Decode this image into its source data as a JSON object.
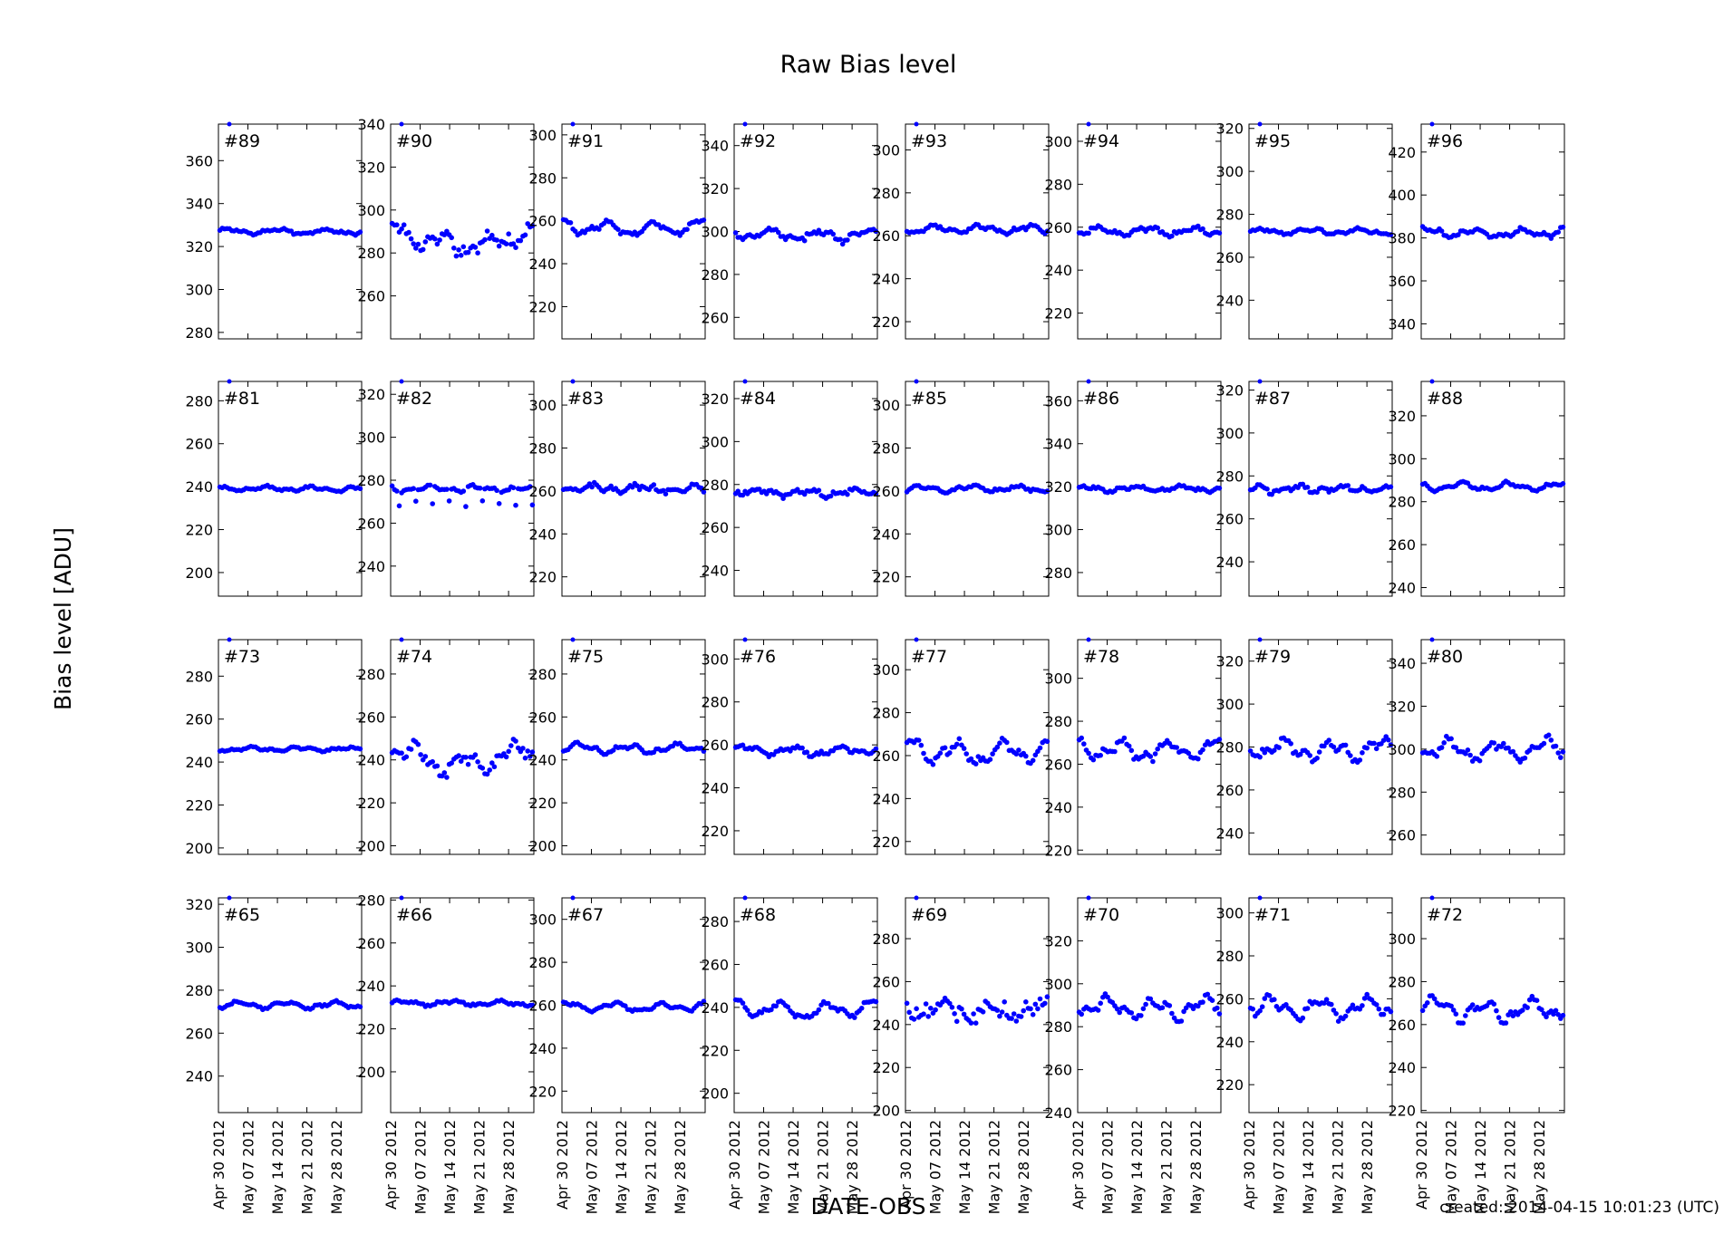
{
  "figure": {
    "title": "Raw Bias level",
    "ylabel": "Bias level [ADU]",
    "xlabel": "DATE-OBS",
    "created": "created: 2014-04-15 10:01:23 (UTC)"
  },
  "colors": {
    "marker": "#0000ff",
    "axes": "#000000",
    "background": "#ffffff"
  },
  "x_ticks": [
    "Apr 30 2012",
    "May 07 2012",
    "May 14 2012",
    "May 21 2012",
    "May 28 2012"
  ],
  "x_range": [
    "2012-04-30",
    "2012-06-03"
  ],
  "panels": [
    {
      "label": "#89",
      "ylim": [
        277,
        377
      ],
      "yticks": [
        280,
        300,
        320,
        340,
        360
      ],
      "level": 327,
      "noise": 0.5,
      "wave": 1.0,
      "dip": 0,
      "scatter": 0.6
    },
    {
      "label": "#90",
      "ylim": [
        240,
        340
      ],
      "yticks": [
        260,
        280,
        300,
        320,
        340
      ],
      "level": 291,
      "noise": 2.0,
      "wave": 3.0,
      "dip": 8,
      "scatter": 2.5
    },
    {
      "label": "#91",
      "ylim": [
        205,
        305
      ],
      "yticks": [
        220,
        240,
        260,
        280,
        300
      ],
      "level": 258,
      "noise": 1.0,
      "wave": 2.5,
      "dip": 2,
      "scatter": 1.0
    },
    {
      "label": "#92",
      "ylim": [
        250,
        350
      ],
      "yticks": [
        260,
        280,
        300,
        320,
        340
      ],
      "level": 299,
      "noise": 1.0,
      "wave": 2.0,
      "dip": 1,
      "scatter": 1.2
    },
    {
      "label": "#93",
      "ylim": [
        212,
        312
      ],
      "yticks": [
        220,
        240,
        260,
        280,
        300
      ],
      "level": 263,
      "noise": 0.8,
      "wave": 1.5,
      "dip": 0,
      "scatter": 0.8
    },
    {
      "label": "#94",
      "ylim": [
        208,
        308
      ],
      "yticks": [
        220,
        240,
        260,
        280,
        300
      ],
      "level": 258,
      "noise": 0.8,
      "wave": 1.5,
      "dip": 0,
      "scatter": 0.8
    },
    {
      "label": "#95",
      "ylim": [
        222,
        322
      ],
      "yticks": [
        240,
        260,
        280,
        300,
        320
      ],
      "level": 272,
      "noise": 0.6,
      "wave": 1.0,
      "dip": 0,
      "scatter": 0.6
    },
    {
      "label": "#96",
      "ylim": [
        333,
        433
      ],
      "yticks": [
        340,
        360,
        380,
        400,
        420
      ],
      "level": 383,
      "noise": 1.0,
      "wave": 1.5,
      "dip": 1,
      "scatter": 0.8
    },
    {
      "label": "#81",
      "ylim": [
        189,
        289
      ],
      "yticks": [
        200,
        220,
        240,
        260,
        280
      ],
      "level": 239,
      "noise": 0.5,
      "wave": 0.8,
      "dip": 0,
      "scatter": 0.5
    },
    {
      "label": "#82",
      "ylim": [
        226,
        326
      ],
      "yticks": [
        240,
        260,
        280,
        300,
        320
      ],
      "level": 276,
      "noise": 0.8,
      "wave": 0.8,
      "dip": 0,
      "scatter": 0.6,
      "outliers": 8
    },
    {
      "label": "#83",
      "ylim": [
        211,
        311
      ],
      "yticks": [
        220,
        240,
        260,
        280,
        300
      ],
      "level": 261,
      "noise": 1.0,
      "wave": 1.0,
      "dip": 0,
      "scatter": 1.2
    },
    {
      "label": "#84",
      "ylim": [
        228,
        328
      ],
      "yticks": [
        240,
        260,
        280,
        300,
        320
      ],
      "level": 277,
      "noise": 0.8,
      "wave": 1.0,
      "dip": 1,
      "scatter": 1.0
    },
    {
      "label": "#85",
      "ylim": [
        211,
        311
      ],
      "yticks": [
        220,
        240,
        260,
        280,
        300
      ],
      "level": 261,
      "noise": 0.6,
      "wave": 1.0,
      "dip": 0,
      "scatter": 0.6
    },
    {
      "label": "#86",
      "ylim": [
        269,
        369
      ],
      "yticks": [
        280,
        300,
        320,
        340,
        360
      ],
      "level": 319,
      "noise": 0.6,
      "wave": 1.0,
      "dip": 0,
      "scatter": 0.6
    },
    {
      "label": "#87",
      "ylim": [
        224,
        324
      ],
      "yticks": [
        240,
        260,
        280,
        300,
        320
      ],
      "level": 274,
      "noise": 0.8,
      "wave": 1.0,
      "dip": 0,
      "scatter": 1.0
    },
    {
      "label": "#88",
      "ylim": [
        236,
        336
      ],
      "yticks": [
        240,
        260,
        280,
        300,
        320
      ],
      "level": 287,
      "noise": 0.8,
      "wave": 1.5,
      "dip": 0,
      "scatter": 0.6
    },
    {
      "label": "#73",
      "ylim": [
        197,
        297
      ],
      "yticks": [
        200,
        220,
        240,
        260,
        280
      ],
      "level": 246,
      "noise": 0.4,
      "wave": 0.6,
      "dip": 0,
      "scatter": 0.4
    },
    {
      "label": "#74",
      "ylim": [
        196,
        296
      ],
      "yticks": [
        200,
        220,
        240,
        260,
        280
      ],
      "level": 247,
      "noise": 2.0,
      "wave": 4.0,
      "dip": 10,
      "scatter": 2.5
    },
    {
      "label": "#75",
      "ylim": [
        196,
        296
      ],
      "yticks": [
        200,
        220,
        240,
        260,
        280
      ],
      "level": 246,
      "noise": 0.8,
      "wave": 1.5,
      "dip": 1,
      "scatter": 0.6
    },
    {
      "label": "#76",
      "ylim": [
        209,
        309
      ],
      "yticks": [
        220,
        240,
        260,
        280,
        300
      ],
      "level": 258,
      "noise": 0.8,
      "wave": 1.5,
      "dip": 1,
      "scatter": 0.8
    },
    {
      "label": "#77",
      "ylim": [
        214,
        314
      ],
      "yticks": [
        220,
        240,
        260,
        280,
        300
      ],
      "level": 264,
      "noise": 2.0,
      "wave": 4.0,
      "dip": 3,
      "scatter": 1.5
    },
    {
      "label": "#78",
      "ylim": [
        218,
        318
      ],
      "yticks": [
        220,
        240,
        260,
        280,
        300
      ],
      "level": 268,
      "noise": 2.0,
      "wave": 3.5,
      "dip": 2,
      "scatter": 1.5
    },
    {
      "label": "#79",
      "ylim": [
        230,
        330
      ],
      "yticks": [
        240,
        260,
        280,
        300,
        320
      ],
      "level": 280,
      "noise": 2.0,
      "wave": 3.5,
      "dip": 2,
      "scatter": 1.5
    },
    {
      "label": "#80",
      "ylim": [
        251,
        351
      ],
      "yticks": [
        260,
        280,
        300,
        320,
        340
      ],
      "level": 301,
      "noise": 2.0,
      "wave": 3.5,
      "dip": 2,
      "scatter": 1.5
    },
    {
      "label": "#65",
      "ylim": [
        223,
        323
      ],
      "yticks": [
        240,
        260,
        280,
        300,
        320
      ],
      "level": 273,
      "noise": 0.6,
      "wave": 1.2,
      "dip": 0,
      "scatter": 0.5
    },
    {
      "label": "#66",
      "ylim": [
        181,
        281
      ],
      "yticks": [
        200,
        220,
        240,
        260,
        280
      ],
      "level": 232,
      "noise": 0.5,
      "wave": 0.8,
      "dip": 0,
      "scatter": 0.5
    },
    {
      "label": "#67",
      "ylim": [
        210,
        310
      ],
      "yticks": [
        220,
        240,
        260,
        280,
        300
      ],
      "level": 260,
      "noise": 0.8,
      "wave": 1.5,
      "dip": 1,
      "scatter": 0.6
    },
    {
      "label": "#68",
      "ylim": [
        191,
        291
      ],
      "yticks": [
        200,
        220,
        240,
        260,
        280
      ],
      "level": 241,
      "noise": 1.0,
      "wave": 3.0,
      "dip": 3,
      "scatter": 0.8
    },
    {
      "label": "#69",
      "ylim": [
        199,
        299
      ],
      "yticks": [
        200,
        220,
        240,
        260,
        280
      ],
      "level": 248,
      "noise": 2.0,
      "wave": 2.0,
      "dip": 2,
      "scatter": 3.0
    },
    {
      "label": "#70",
      "ylim": [
        240,
        340
      ],
      "yticks": [
        240,
        260,
        280,
        300,
        320
      ],
      "level": 290,
      "noise": 2.0,
      "wave": 3.5,
      "dip": 2,
      "scatter": 1.5
    },
    {
      "label": "#71",
      "ylim": [
        207,
        307
      ],
      "yticks": [
        220,
        240,
        260,
        280,
        300
      ],
      "level": 257,
      "noise": 2.0,
      "wave": 3.5,
      "dip": 2,
      "scatter": 1.5
    },
    {
      "label": "#72",
      "ylim": [
        219,
        319
      ],
      "yticks": [
        220,
        240,
        260,
        280,
        300
      ],
      "level": 268,
      "noise": 2.0,
      "wave": 3.5,
      "dip": 2,
      "scatter": 1.5
    }
  ],
  "chart_data": {
    "type": "scatter",
    "title": "Raw Bias level",
    "xlabel": "DATE-OBS",
    "ylabel": "Bias level [ADU]",
    "x_ticks": [
      "Apr 30 2012",
      "May 07 2012",
      "May 14 2012",
      "May 21 2012",
      "May 28 2012"
    ],
    "panels_grid": "4 rows x 8 columns, one scatter panel per channel",
    "series_levels": {
      "#89": 327,
      "#90": 291,
      "#91": 258,
      "#92": 299,
      "#93": 263,
      "#94": 258,
      "#95": 272,
      "#96": 383,
      "#81": 239,
      "#82": 276,
      "#83": 261,
      "#84": 277,
      "#85": 261,
      "#86": 319,
      "#87": 274,
      "#88": 287,
      "#73": 246,
      "#74": 247,
      "#75": 246,
      "#76": 258,
      "#77": 264,
      "#78": 268,
      "#79": 280,
      "#80": 301,
      "#65": 273,
      "#66": 232,
      "#67": 260,
      "#68": 241,
      "#69": 248,
      "#70": 290,
      "#71": 257,
      "#72": 268
    }
  }
}
